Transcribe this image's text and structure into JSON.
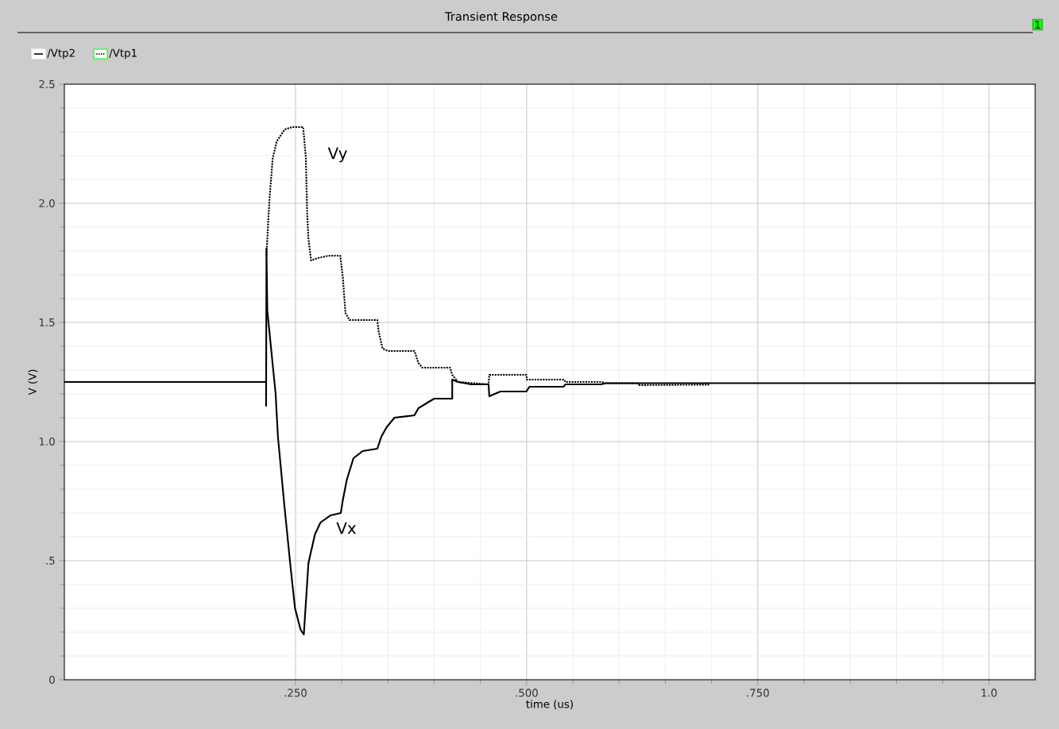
{
  "chart_data": {
    "type": "line",
    "title": "Transient Response",
    "xlabel": "time (us)",
    "ylabel": "V (V)",
    "xlim": [
      0,
      1.05
    ],
    "ylim": [
      0,
      2.5
    ],
    "xticks": [
      {
        "value": 0.25,
        "label": ".250"
      },
      {
        "value": 0.5,
        "label": ".500"
      },
      {
        "value": 0.75,
        "label": ".750"
      },
      {
        "value": 1.0,
        "label": "1.0"
      }
    ],
    "yticks": [
      0,
      {
        "value": 0.5,
        "label": ".5"
      },
      {
        "value": 1.0,
        "label": "1.0"
      },
      1.5,
      {
        "value": 2.0,
        "label": "2.0"
      },
      2.5
    ],
    "grid": true,
    "legend": "top left",
    "series": [
      {
        "name": "/Vtp2",
        "color": "#000000",
        "line_style": "solid",
        "x": [
          0,
          0.2182,
          0.2182,
          0.2186,
          0.2195,
          0.2285,
          0.231,
          0.238,
          0.245,
          0.2495,
          0.2555,
          0.259,
          0.264,
          0.271,
          0.277,
          0.288,
          0.299,
          0.301,
          0.3055,
          0.3127,
          0.3227,
          0.3385,
          0.3428,
          0.3485,
          0.357,
          0.3786,
          0.383,
          0.3914,
          0.4,
          0.4195,
          0.4195,
          0.4258,
          0.44,
          0.4588,
          0.4596,
          0.4716,
          0.4997,
          0.503,
          0.54,
          0.5418,
          0.5805,
          0.586,
          1.05
        ],
        "values": [
          1.25,
          1.25,
          1.15,
          1.81,
          1.55,
          1.2,
          1.02,
          0.73,
          0.46,
          0.3,
          0.21,
          0.19,
          0.49,
          0.61,
          0.66,
          0.69,
          0.7,
          0.75,
          0.84,
          0.93,
          0.96,
          0.97,
          1.02,
          1.06,
          1.1,
          1.11,
          1.14,
          1.16,
          1.18,
          1.18,
          1.26,
          1.25,
          1.24,
          1.24,
          1.19,
          1.21,
          1.21,
          1.23,
          1.23,
          1.24,
          1.24,
          1.245,
          1.245
        ]
      },
      {
        "name": "/Vtp1",
        "color": "#000000",
        "line_style": "dotted",
        "x": [
          0.2186,
          0.221,
          0.2225,
          0.2254,
          0.2297,
          0.2383,
          0.2468,
          0.2583,
          0.2612,
          0.2626,
          0.264,
          0.2669,
          0.274,
          0.2855,
          0.2984,
          0.3012,
          0.304,
          0.3084,
          0.3385,
          0.34,
          0.3442,
          0.3499,
          0.3786,
          0.3829,
          0.3872,
          0.4172,
          0.4195,
          0.4258,
          0.4588,
          0.4596,
          0.4997,
          0.5003,
          0.5404,
          0.5418,
          0.5805,
          0.5862,
          0.6205,
          0.6205,
          0.698
        ],
        "values": [
          1.78,
          1.96,
          2.05,
          2.19,
          2.26,
          2.31,
          2.32,
          2.32,
          2.19,
          1.96,
          1.85,
          1.76,
          1.77,
          1.78,
          1.78,
          1.69,
          1.54,
          1.51,
          1.51,
          1.46,
          1.39,
          1.38,
          1.38,
          1.33,
          1.31,
          1.31,
          1.28,
          1.25,
          1.24,
          1.28,
          1.28,
          1.26,
          1.26,
          1.25,
          1.25,
          1.244,
          1.244,
          1.237,
          1.239
        ]
      }
    ],
    "annotations": [
      "Vy",
      "Vx",
      "1"
    ]
  }
}
